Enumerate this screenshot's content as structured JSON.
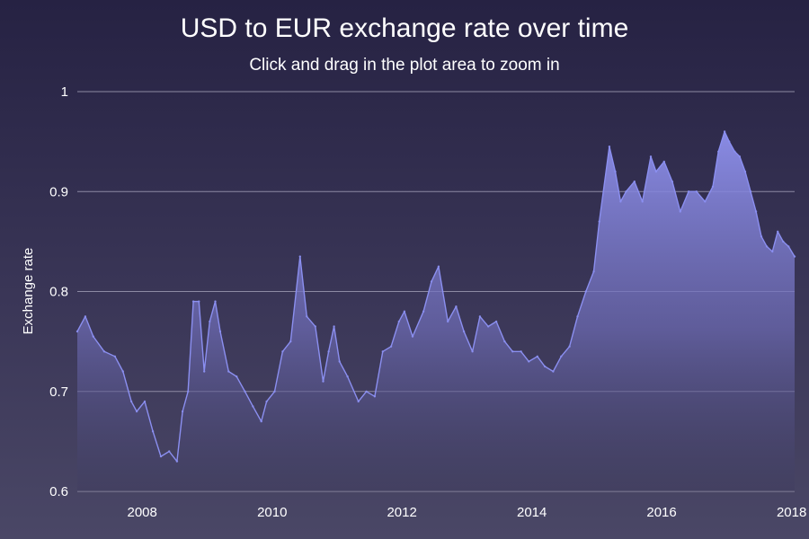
{
  "chart_data": {
    "type": "area",
    "title": "USD to EUR exchange rate over time",
    "subtitle": "Click and drag in the plot area to zoom in",
    "xlabel": "",
    "ylabel": "Exchange rate",
    "xlim": [
      "2007-01-01",
      "2018-01-18"
    ],
    "ylim": [
      0.6,
      1.0
    ],
    "x_ticks": [
      "2008",
      "2010",
      "2012",
      "2014",
      "2016",
      "2018"
    ],
    "y_ticks": [
      "0.6",
      "0.7",
      "0.8",
      "0.9",
      "1"
    ],
    "grid": true,
    "legend": "none",
    "colors": {
      "line": "#8b8ff0",
      "fill_top": "#8e90ec",
      "fill_bottom": "#3c3a5c"
    },
    "series": [
      {
        "x": [
          "2007-01-01",
          "2007-02-15",
          "2007-04-01",
          "2007-06-01",
          "2007-08-01",
          "2007-09-15",
          "2007-11-01",
          "2007-12-01",
          "2008-01-15",
          "2008-03-01",
          "2008-04-15",
          "2008-06-01",
          "2008-07-15",
          "2008-08-15",
          "2008-09-15",
          "2008-10-15",
          "2008-11-15",
          "2008-12-15",
          "2009-01-15",
          "2009-02-15",
          "2009-03-15",
          "2009-05-01",
          "2009-06-15",
          "2009-08-01",
          "2009-09-15",
          "2009-11-01",
          "2009-12-01",
          "2010-01-15",
          "2010-03-01",
          "2010-04-15",
          "2010-06-07",
          "2010-07-15",
          "2010-09-01",
          "2010-10-15",
          "2010-11-15",
          "2010-12-15",
          "2011-01-15",
          "2011-03-01",
          "2011-05-01",
          "2011-06-15",
          "2011-08-01",
          "2011-09-15",
          "2011-11-01",
          "2011-12-15",
          "2012-01-15",
          "2012-03-01",
          "2012-05-01",
          "2012-06-15",
          "2012-07-25",
          "2012-09-15",
          "2012-11-01",
          "2012-12-15",
          "2013-02-01",
          "2013-03-15",
          "2013-05-01",
          "2013-06-15",
          "2013-08-01",
          "2013-09-15",
          "2013-11-01",
          "2013-12-15",
          "2014-02-01",
          "2014-03-15",
          "2014-05-01",
          "2014-06-15",
          "2014-08-01",
          "2014-09-15",
          "2014-11-01",
          "2014-12-15",
          "2015-01-15",
          "2015-03-13",
          "2015-04-15",
          "2015-05-15",
          "2015-06-15",
          "2015-08-01",
          "2015-09-15",
          "2015-11-01",
          "2015-12-01",
          "2016-01-15",
          "2016-03-01",
          "2016-04-15",
          "2016-06-01",
          "2016-07-15",
          "2016-09-01",
          "2016-10-15",
          "2016-11-15",
          "2016-12-20",
          "2017-01-15",
          "2017-02-15",
          "2017-03-15",
          "2017-04-15",
          "2017-05-15",
          "2017-06-15",
          "2017-07-15",
          "2017-08-15",
          "2017-09-15",
          "2017-10-15",
          "2017-11-15",
          "2017-12-15",
          "2018-01-18"
        ],
        "y": [
          0.76,
          0.775,
          0.755,
          0.74,
          0.735,
          0.72,
          0.69,
          0.68,
          0.69,
          0.66,
          0.635,
          0.64,
          0.63,
          0.68,
          0.7,
          0.79,
          0.79,
          0.72,
          0.77,
          0.79,
          0.76,
          0.72,
          0.715,
          0.7,
          0.685,
          0.67,
          0.69,
          0.7,
          0.74,
          0.75,
          0.835,
          0.775,
          0.765,
          0.71,
          0.74,
          0.765,
          0.73,
          0.715,
          0.69,
          0.7,
          0.695,
          0.74,
          0.745,
          0.77,
          0.78,
          0.755,
          0.78,
          0.81,
          0.825,
          0.77,
          0.785,
          0.76,
          0.74,
          0.775,
          0.765,
          0.77,
          0.75,
          0.74,
          0.74,
          0.73,
          0.735,
          0.725,
          0.72,
          0.735,
          0.745,
          0.775,
          0.8,
          0.82,
          0.87,
          0.945,
          0.92,
          0.89,
          0.9,
          0.91,
          0.89,
          0.935,
          0.92,
          0.93,
          0.91,
          0.88,
          0.9,
          0.9,
          0.89,
          0.905,
          0.94,
          0.96,
          0.95,
          0.94,
          0.935,
          0.92,
          0.9,
          0.88,
          0.855,
          0.845,
          0.84,
          0.86,
          0.85,
          0.845,
          0.835
        ]
      }
    ]
  }
}
